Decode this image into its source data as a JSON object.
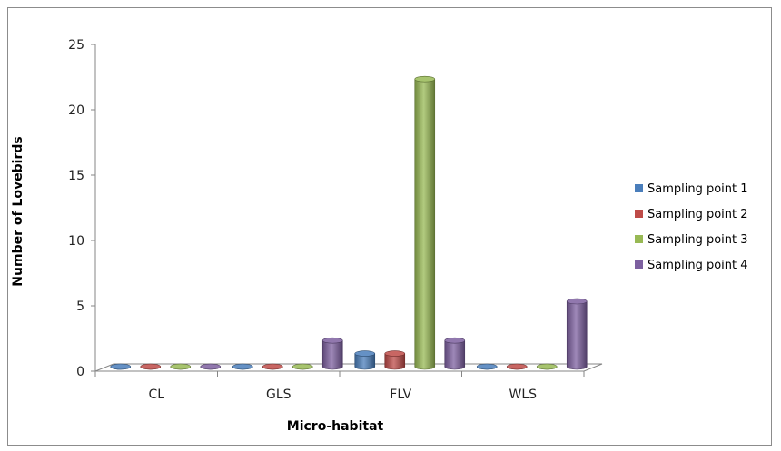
{
  "chart_data": {
    "type": "bar",
    "categories": [
      "CL",
      "GLS",
      "FLV",
      "WLS"
    ],
    "series": [
      {
        "name": "Sampling point 1",
        "color": "#4a7ebb",
        "values": [
          0,
          0,
          1,
          0
        ]
      },
      {
        "name": "Sampling point 2",
        "color": "#be4b48",
        "values": [
          0,
          0,
          1,
          0
        ]
      },
      {
        "name": "Sampling point 3",
        "color": "#98b954",
        "values": [
          0,
          0,
          22,
          0
        ]
      },
      {
        "name": "Sampling point 4",
        "color": "#7d60a0",
        "values": [
          0,
          2,
          2,
          5
        ]
      }
    ],
    "xlabel": "Micro-habitat",
    "ylabel": "Number of Lovebirds",
    "ylim": [
      0,
      25
    ],
    "yticks": [
      0,
      5,
      10,
      15,
      20,
      25
    ],
    "legend_position": "right",
    "grid": false,
    "style": "3d-cylinder"
  }
}
